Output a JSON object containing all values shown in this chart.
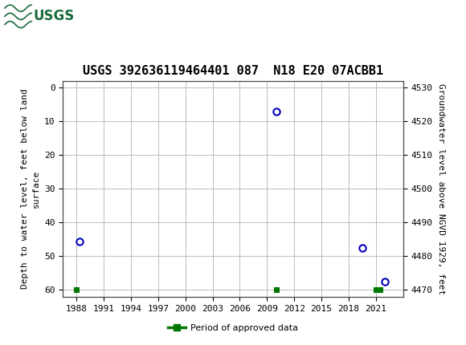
{
  "title": "USGS 392636119464401 087  N18 E20 07ACBB1",
  "ylabel_left": "Depth to water level, feet below land\nsurface",
  "ylabel_right": "Groundwater level above NGVD 1929, feet",
  "xlim": [
    1986.5,
    2024.0
  ],
  "ylim_left": [
    62,
    -2
  ],
  "ylim_right": [
    4468,
    4532
  ],
  "xticks": [
    1988,
    1991,
    1994,
    1997,
    2000,
    2003,
    2006,
    2009,
    2012,
    2015,
    2018,
    2021
  ],
  "yticks_left": [
    0,
    10,
    20,
    30,
    40,
    50,
    60
  ],
  "yticks_right": [
    4470,
    4480,
    4490,
    4500,
    4510,
    4520,
    4530
  ],
  "blue_points_x": [
    1988.3,
    2010.0,
    2019.5,
    2022.0
  ],
  "blue_points_y": [
    45.5,
    7.0,
    47.5,
    57.5
  ],
  "green_points_x": [
    1988.0,
    2010.0,
    2021.0,
    2021.5
  ],
  "green_points_y": [
    60,
    60,
    60,
    60
  ],
  "blue_color": "#0000bb",
  "green_color": "#007700",
  "bg_color": "#ffffff",
  "header_bg": "#1a6b3c",
  "grid_color": "#bbbbbb",
  "legend_label": "Period of approved data",
  "title_fontsize": 11,
  "axis_fontsize": 8,
  "tick_fontsize": 8
}
